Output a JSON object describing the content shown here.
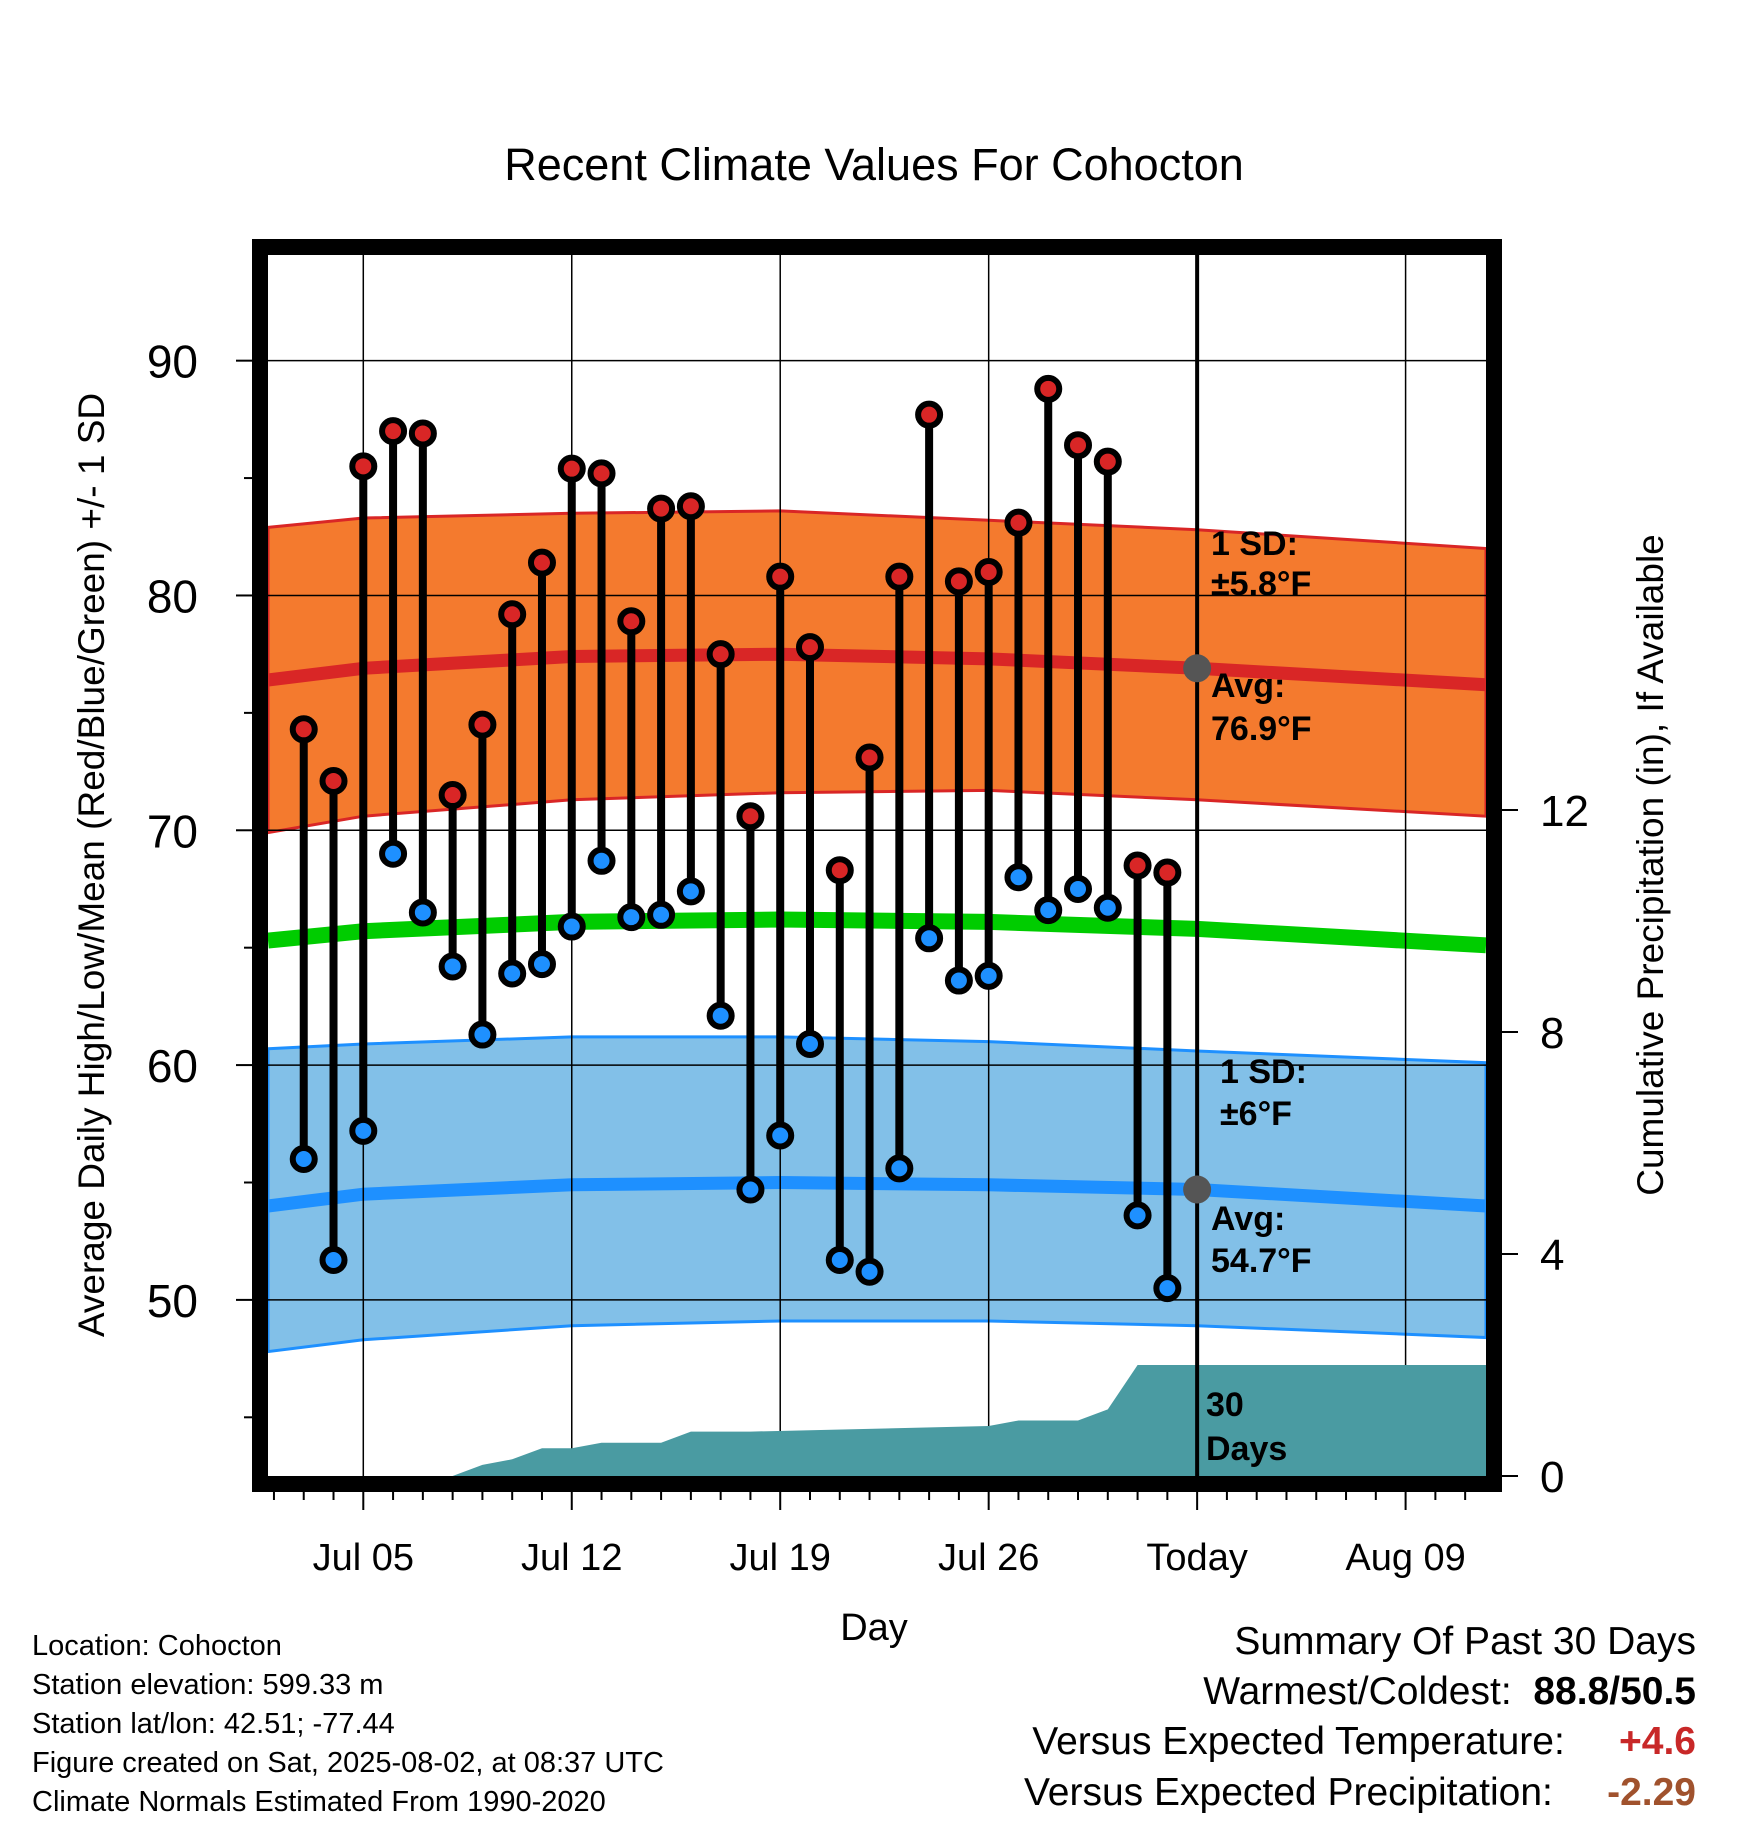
{
  "chart_data": {
    "type": "bar",
    "title": "Recent Climate Values For Cohocton",
    "xlabel": "Day",
    "ylabel": "Average Daily High/Low/Mean (Red/Blue/Green) +/- 1 SD",
    "y2label": "Cumulative Precipitation (in), If Available",
    "ylim": [
      42.5,
      94.5
    ],
    "y2lim": [
      0,
      22
    ],
    "y_ticks": [
      "50",
      "60",
      "70",
      "80",
      "90"
    ],
    "y2_ticks": [
      "0",
      "4",
      "8",
      "12"
    ],
    "x_ticks": [
      {
        "day": 5,
        "label": "Jul 05"
      },
      {
        "day": 12,
        "label": "Jul 12"
      },
      {
        "day": 19,
        "label": "Jul 19"
      },
      {
        "day": 26,
        "label": "Jul 26"
      },
      {
        "day": 33,
        "label": "Today"
      },
      {
        "day": 40,
        "label": "Aug 09"
      }
    ],
    "x_range_days": [
      1.8,
      42.7
    ],
    "today_day": 33,
    "days": [
      3,
      4,
      5,
      6,
      7,
      8,
      9,
      10,
      11,
      12,
      13,
      14,
      15,
      16,
      17,
      18,
      19,
      20,
      21,
      22,
      23,
      24,
      25,
      26,
      27,
      28,
      29,
      30,
      31,
      32
    ],
    "highs": [
      74.3,
      72.1,
      85.5,
      87.0,
      86.9,
      71.5,
      74.5,
      79.2,
      81.4,
      85.4,
      85.2,
      78.9,
      83.7,
      83.8,
      77.5,
      70.6,
      80.8,
      77.8,
      68.3,
      73.1,
      80.8,
      87.7,
      80.6,
      81.0,
      83.1,
      88.8,
      86.4,
      85.7,
      68.5,
      68.2
    ],
    "lows": [
      56.0,
      51.7,
      57.2,
      69.0,
      66.5,
      64.2,
      61.3,
      63.9,
      64.3,
      65.9,
      68.7,
      66.3,
      66.4,
      67.4,
      62.1,
      54.7,
      57.0,
      60.9,
      51.7,
      51.2,
      55.6,
      65.4,
      63.6,
      63.8,
      68.0,
      66.6,
      67.5,
      66.7,
      53.6,
      50.5
    ],
    "normal_high": {
      "days": [
        1.8,
        5,
        12,
        19,
        26,
        33,
        42.7
      ],
      "mean": [
        76.4,
        76.9,
        77.4,
        77.5,
        77.3,
        76.9,
        76.2
      ],
      "upper": [
        82.9,
        83.3,
        83.5,
        83.6,
        83.2,
        82.8,
        82.0
      ],
      "lower": [
        69.9,
        70.6,
        71.3,
        71.6,
        71.7,
        71.3,
        70.6
      ]
    },
    "normal_low": {
      "days": [
        1.8,
        5,
        12,
        19,
        26,
        33,
        42.7
      ],
      "mean": [
        54.0,
        54.5,
        54.9,
        55.0,
        54.9,
        54.7,
        54.0
      ],
      "upper": [
        60.7,
        60.9,
        61.2,
        61.2,
        61.0,
        60.6,
        60.1
      ],
      "lower": [
        47.8,
        48.3,
        48.9,
        49.1,
        49.1,
        48.9,
        48.4
      ]
    },
    "normal_mean": {
      "days": [
        1.8,
        5,
        12,
        19,
        26,
        33,
        42.7
      ],
      "values": [
        65.3,
        65.7,
        66.1,
        66.2,
        66.1,
        65.8,
        65.1
      ]
    },
    "precip_cumulative": {
      "days": [
        3,
        8,
        9,
        10,
        11,
        12,
        13,
        14,
        15,
        16,
        18,
        26,
        27,
        29,
        30,
        31,
        32,
        42.7
      ],
      "values": [
        0,
        0,
        0.2,
        0.3,
        0.5,
        0.5,
        0.6,
        0.6,
        0.6,
        0.8,
        0.8,
        0.9,
        1.0,
        1.0,
        1.2,
        2.0,
        2.0,
        2.0
      ]
    },
    "annotations": {
      "high_sd_line1": "1 SD:",
      "high_sd_line2": "±5.8°F",
      "high_avg_line1": "Avg:",
      "high_avg_line2": "76.9°F",
      "low_sd_line1": "1 SD:",
      "low_sd_line2": "±6°F",
      "low_avg_line1": "Avg:",
      "low_avg_line2": "54.7°F",
      "precip_line1": "30",
      "precip_line2": "Days"
    },
    "colors": {
      "high_band": "#F47A2E",
      "high_line": "#D92626",
      "low_band": "#82C0E8",
      "low_line": "#1E90FF",
      "mean_line": "#00CC00",
      "precip": "#4A9BA2",
      "high_dot": "#D92626",
      "low_dot": "#1E90FF",
      "annotation": "#555555"
    }
  },
  "footer": {
    "location": "Location: Cohocton",
    "elevation": "Station elevation: 599.33 m",
    "latlon": "Station lat/lon: 42.51; -77.44",
    "created": "Figure created on Sat, 2025-08-02, at 08:37 UTC",
    "normals": "Climate Normals Estimated From 1990-2020"
  },
  "summary": {
    "title": "Summary Of Past 30 Days",
    "warm_cold_label": "Warmest/Coldest:",
    "warm_cold_value": "88.8/50.5",
    "temp_label": "Versus Expected Temperature:",
    "temp_value": "+4.6",
    "precip_label": "Versus Expected Precipitation:",
    "precip_value": "-2.29",
    "temp_value_color": "#C82828",
    "precip_value_color": "#A0522D"
  }
}
